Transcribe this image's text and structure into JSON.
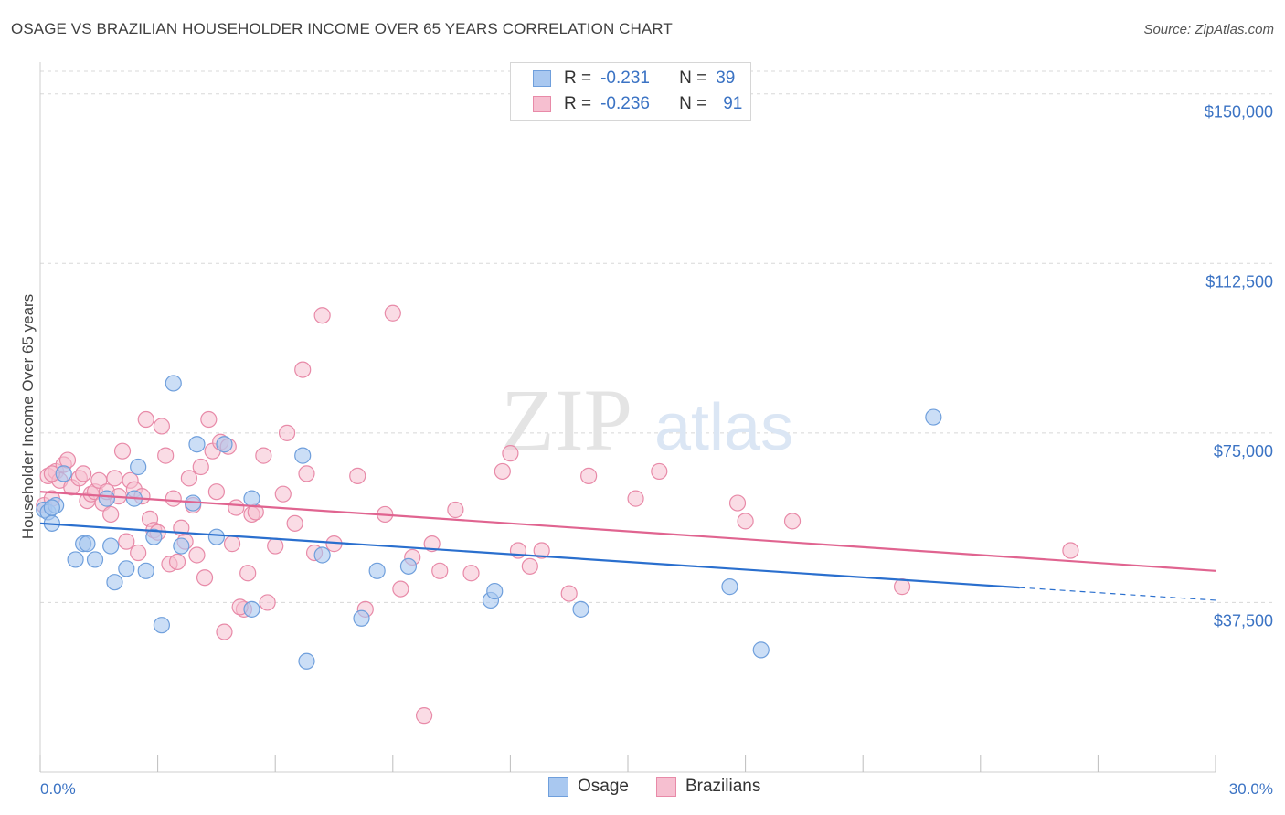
{
  "header": {
    "title": "OSAGE VS BRAZILIAN HOUSEHOLDER INCOME OVER 65 YEARS CORRELATION CHART",
    "source": "Source: ZipAtlas.com"
  },
  "legend": {
    "osage": {
      "r_label": "R =",
      "r_value": "-0.231",
      "n_label": "N =",
      "n_value": "39"
    },
    "brazilians": {
      "r_label": "R =",
      "r_value": "-0.236",
      "n_label": "N =",
      "n_value": "91"
    }
  },
  "bottom_legend": {
    "osage": "Osage",
    "brazilians": "Brazilians"
  },
  "watermark": {
    "zip": "ZIP",
    "atlas": "atlas"
  },
  "colors": {
    "osage_fill": "#a9c8f0",
    "osage_stroke": "#6f9fdc",
    "osage_line": "#2a6fce",
    "braz_fill": "#f6bfd0",
    "braz_stroke": "#e88aa8",
    "braz_line": "#e06490",
    "axis_text": "#3b73c4",
    "grid": "#d8d8d8"
  },
  "chart_data": {
    "type": "scatter",
    "title": "OSAGE VS BRAZILIAN HOUSEHOLDER INCOME OVER 65 YEARS CORRELATION CHART",
    "xlabel": "",
    "ylabel": "Householder Income Over 65 years",
    "xlim": [
      0,
      30
    ],
    "ylim": [
      0,
      155000
    ],
    "x_tick_labels": [
      "0.0%",
      "30.0%"
    ],
    "y_ticks": [
      37500,
      75000,
      112500,
      150000
    ],
    "y_tick_labels": [
      "$37,500",
      "$75,000",
      "$112,500",
      "$150,000"
    ],
    "series": [
      {
        "name": "Osage",
        "r": -0.231,
        "n": 39,
        "trend": {
          "x0": 0,
          "y0": 55000,
          "x1": 25,
          "y1": 40800,
          "dash_to_x": 30,
          "dash_to_y": 38000
        },
        "points": [
          [
            0.1,
            58000
          ],
          [
            0.2,
            57500
          ],
          [
            0.3,
            55000
          ],
          [
            0.4,
            59000
          ],
          [
            0.6,
            66000
          ],
          [
            0.9,
            47000
          ],
          [
            1.1,
            50500
          ],
          [
            1.2,
            50500
          ],
          [
            1.4,
            47000
          ],
          [
            1.7,
            60500
          ],
          [
            1.8,
            50000
          ],
          [
            1.9,
            42000
          ],
          [
            2.2,
            45000
          ],
          [
            2.4,
            60500
          ],
          [
            2.5,
            67500
          ],
          [
            2.7,
            44500
          ],
          [
            2.9,
            52000
          ],
          [
            3.1,
            32500
          ],
          [
            3.4,
            86000
          ],
          [
            3.6,
            50000
          ],
          [
            3.9,
            59500
          ],
          [
            4.0,
            72500
          ],
          [
            4.5,
            52000
          ],
          [
            4.7,
            72500
          ],
          [
            5.4,
            36000
          ],
          [
            5.4,
            60500
          ],
          [
            6.7,
            70000
          ],
          [
            6.8,
            24500
          ],
          [
            7.2,
            48000
          ],
          [
            8.2,
            34000
          ],
          [
            8.6,
            44500
          ],
          [
            9.4,
            45500
          ],
          [
            11.5,
            38000
          ],
          [
            11.6,
            40000
          ],
          [
            13.8,
            36000
          ],
          [
            17.6,
            41000
          ],
          [
            18.4,
            27000
          ],
          [
            22.8,
            78500
          ],
          [
            0.3,
            58500
          ]
        ]
      },
      {
        "name": "Brazilians",
        "r": -0.236,
        "n": 91,
        "trend": {
          "x0": 0,
          "y0": 62000,
          "x1": 30,
          "y1": 44500
        },
        "points": [
          [
            0.1,
            59000
          ],
          [
            0.2,
            65500
          ],
          [
            0.3,
            60500
          ],
          [
            0.4,
            66500
          ],
          [
            0.5,
            64500
          ],
          [
            0.6,
            68000
          ],
          [
            0.7,
            69000
          ],
          [
            0.8,
            63000
          ],
          [
            1.0,
            65000
          ],
          [
            1.1,
            66000
          ],
          [
            1.2,
            60000
          ],
          [
            1.3,
            61500
          ],
          [
            1.4,
            62000
          ],
          [
            1.5,
            64500
          ],
          [
            1.6,
            59500
          ],
          [
            1.7,
            62000
          ],
          [
            1.8,
            57000
          ],
          [
            1.9,
            65000
          ],
          [
            2.0,
            61000
          ],
          [
            2.1,
            71000
          ],
          [
            2.2,
            51000
          ],
          [
            2.3,
            64500
          ],
          [
            2.4,
            62500
          ],
          [
            2.5,
            48500
          ],
          [
            2.6,
            61000
          ],
          [
            2.7,
            78000
          ],
          [
            2.8,
            56000
          ],
          [
            2.9,
            53500
          ],
          [
            3.0,
            53000
          ],
          [
            3.1,
            76500
          ],
          [
            3.2,
            70000
          ],
          [
            3.3,
            46000
          ],
          [
            3.4,
            60500
          ],
          [
            3.5,
            46500
          ],
          [
            3.6,
            54000
          ],
          [
            3.7,
            51000
          ],
          [
            3.8,
            65000
          ],
          [
            3.9,
            59000
          ],
          [
            4.0,
            48000
          ],
          [
            4.1,
            67500
          ],
          [
            4.2,
            43000
          ],
          [
            4.3,
            78000
          ],
          [
            4.4,
            71000
          ],
          [
            4.5,
            62000
          ],
          [
            4.6,
            73000
          ],
          [
            4.7,
            31000
          ],
          [
            4.8,
            72000
          ],
          [
            4.9,
            50500
          ],
          [
            5.0,
            58500
          ],
          [
            5.2,
            36000
          ],
          [
            5.3,
            44000
          ],
          [
            5.4,
            57000
          ],
          [
            5.5,
            57500
          ],
          [
            5.7,
            70000
          ],
          [
            5.8,
            37500
          ],
          [
            6.0,
            50000
          ],
          [
            6.2,
            61500
          ],
          [
            6.3,
            75000
          ],
          [
            6.5,
            55000
          ],
          [
            6.7,
            89000
          ],
          [
            6.8,
            66000
          ],
          [
            7.0,
            48500
          ],
          [
            7.2,
            101000
          ],
          [
            7.5,
            50500
          ],
          [
            8.1,
            65500
          ],
          [
            8.3,
            36000
          ],
          [
            8.8,
            57000
          ],
          [
            9.0,
            101500
          ],
          [
            9.2,
            40500
          ],
          [
            9.5,
            47500
          ],
          [
            10.0,
            50500
          ],
          [
            10.2,
            44500
          ],
          [
            10.6,
            58000
          ],
          [
            11.8,
            66500
          ],
          [
            12.0,
            70500
          ],
          [
            12.2,
            49000
          ],
          [
            12.5,
            45500
          ],
          [
            12.8,
            49000
          ],
          [
            13.5,
            39500
          ],
          [
            14.0,
            65500
          ],
          [
            15.2,
            60500
          ],
          [
            15.8,
            66500
          ],
          [
            17.8,
            59500
          ],
          [
            18.0,
            55500
          ],
          [
            19.2,
            55500
          ],
          [
            22.0,
            41000
          ],
          [
            26.3,
            49000
          ],
          [
            9.8,
            12500
          ],
          [
            0.3,
            66000
          ],
          [
            11.0,
            44000
          ],
          [
            5.1,
            36500
          ]
        ]
      }
    ]
  }
}
